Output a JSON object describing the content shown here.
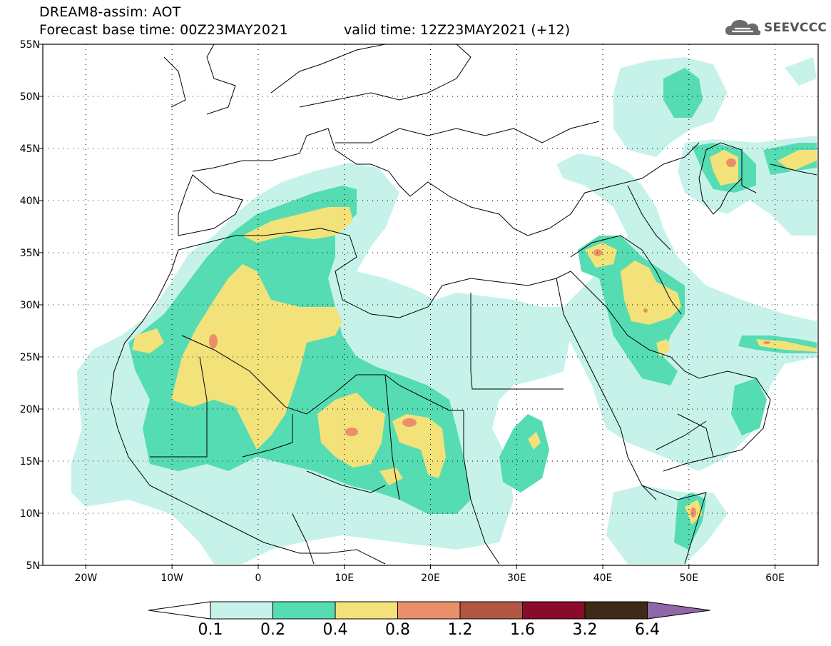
{
  "header": {
    "title_line1": "DREAM8-assim: AOT",
    "title_line2": "Forecast base time: 00Z23MAY2021",
    "valid_time": "valid time: 12Z23MAY2021 (+12)",
    "logo_text": "SEEVCCC"
  },
  "map": {
    "lon_range": [
      -25,
      65
    ],
    "lat_range": [
      5,
      55
    ],
    "lat_labels": [
      "55N",
      "50N",
      "45N",
      "40N",
      "35N",
      "30N",
      "25N",
      "20N",
      "15N",
      "10N",
      "5N"
    ],
    "lon_labels": [
      "20W",
      "10W",
      "0",
      "10E",
      "20E",
      "30E",
      "40E",
      "50E",
      "60E"
    ],
    "grid": "dotted"
  },
  "colorbar": {
    "labels": [
      "0.1",
      "0.2",
      "0.4",
      "0.8",
      "1.2",
      "1.6",
      "3.2",
      "6.4"
    ],
    "colors": [
      "#c6f2ea",
      "#55dcb3",
      "#f3e27a",
      "#e9906a",
      "#b05642",
      "#880b29",
      "#3f2a17",
      "#8e68a8"
    ]
  },
  "colors": {
    "level_0_1": "#c6f2ea",
    "level_0_2": "#55dcb3",
    "level_0_4": "#f3e27a",
    "level_0_8": "#e9906a",
    "border": "#000000"
  }
}
